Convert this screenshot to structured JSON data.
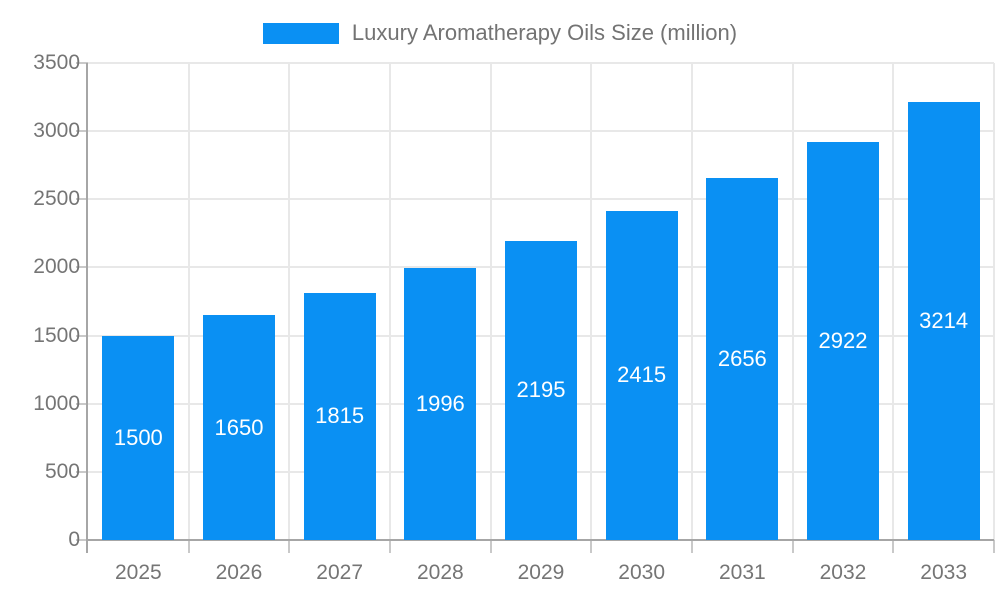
{
  "legend": {
    "label": "Luxury Aromatherapy Oils Size (million)"
  },
  "chart_data": {
    "type": "bar",
    "title": "Luxury Aromatherapy Oils Size (million)",
    "categories": [
      "2025",
      "2026",
      "2027",
      "2028",
      "2029",
      "2030",
      "2031",
      "2032",
      "2033"
    ],
    "values": [
      1500,
      1650,
      1815,
      1996,
      2195,
      2415,
      2656,
      2922,
      3214
    ],
    "xlabel": "",
    "ylabel": "",
    "ylim": [
      0,
      3500
    ],
    "ytick_step": 500,
    "yticks": [
      0,
      500,
      1000,
      1500,
      2000,
      2500,
      3000,
      3500
    ],
    "grid": true,
    "legend_position": "top-center",
    "bar_color": "#0a90f3",
    "bar_label_color": "#ffffff",
    "axis_text_color": "#757575",
    "grid_color": "#e8e8e8",
    "tick_color": "#c9c9c9",
    "axis_line_color": "#a6a6a6"
  }
}
